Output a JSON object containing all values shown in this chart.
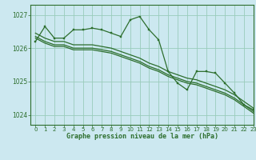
{
  "title": "Graphe pression niveau de la mer (hPa)",
  "bg_color": "#cce8f0",
  "grid_color": "#99ccbb",
  "line_color": "#2d6e2d",
  "xlim": [
    -0.5,
    23
  ],
  "ylim": [
    1023.7,
    1027.3
  ],
  "yticks": [
    1024,
    1025,
    1026,
    1027
  ],
  "xticks": [
    0,
    1,
    2,
    3,
    4,
    5,
    6,
    7,
    8,
    9,
    10,
    11,
    12,
    13,
    14,
    15,
    16,
    17,
    18,
    19,
    20,
    21,
    22,
    23
  ],
  "series": [
    {
      "x": [
        0,
        1,
        2,
        3,
        4,
        5,
        6,
        7,
        8,
        9,
        10,
        11,
        12,
        13,
        14,
        15,
        16,
        17,
        18,
        19,
        20,
        21,
        22,
        23
      ],
      "y": [
        1026.2,
        1026.65,
        1026.3,
        1026.3,
        1026.55,
        1026.55,
        1026.6,
        1026.55,
        1026.45,
        1026.35,
        1026.85,
        1026.95,
        1026.55,
        1026.25,
        1025.3,
        1024.95,
        1024.75,
        1025.3,
        1025.3,
        1025.25,
        1024.95,
        1024.65,
        1024.3,
        1024.15
      ],
      "marker": true
    },
    {
      "x": [
        0,
        1,
        2,
        3,
        4,
        5,
        6,
        7,
        8,
        9,
        10,
        11,
        12,
        13,
        14,
        15,
        16,
        17,
        18,
        19,
        20,
        21,
        22,
        23
      ],
      "y": [
        1026.45,
        1026.3,
        1026.2,
        1026.2,
        1026.1,
        1026.1,
        1026.1,
        1026.05,
        1026.0,
        1025.9,
        1025.8,
        1025.7,
        1025.55,
        1025.45,
        1025.3,
        1025.2,
        1025.1,
        1025.05,
        1024.95,
        1024.85,
        1024.75,
        1024.6,
        1024.4,
        1024.2
      ],
      "marker": false
    },
    {
      "x": [
        0,
        1,
        2,
        3,
        4,
        5,
        6,
        7,
        8,
        9,
        10,
        11,
        12,
        13,
        14,
        15,
        16,
        17,
        18,
        19,
        20,
        21,
        22,
        23
      ],
      "y": [
        1026.35,
        1026.2,
        1026.1,
        1026.1,
        1026.0,
        1026.0,
        1026.0,
        1025.95,
        1025.9,
        1025.8,
        1025.7,
        1025.6,
        1025.45,
        1025.35,
        1025.2,
        1025.1,
        1025.0,
        1024.95,
        1024.85,
        1024.75,
        1024.65,
        1024.5,
        1024.3,
        1024.1
      ],
      "marker": false
    },
    {
      "x": [
        0,
        1,
        2,
        3,
        4,
        5,
        6,
        7,
        8,
        9,
        10,
        11,
        12,
        13,
        14,
        15,
        16,
        17,
        18,
        19,
        20,
        21,
        22,
        23
      ],
      "y": [
        1026.3,
        1026.15,
        1026.05,
        1026.05,
        1025.95,
        1025.95,
        1025.95,
        1025.9,
        1025.85,
        1025.75,
        1025.65,
        1025.55,
        1025.4,
        1025.3,
        1025.15,
        1025.05,
        1024.95,
        1024.9,
        1024.8,
        1024.7,
        1024.6,
        1024.45,
        1024.25,
        1024.05
      ],
      "marker": false
    }
  ]
}
